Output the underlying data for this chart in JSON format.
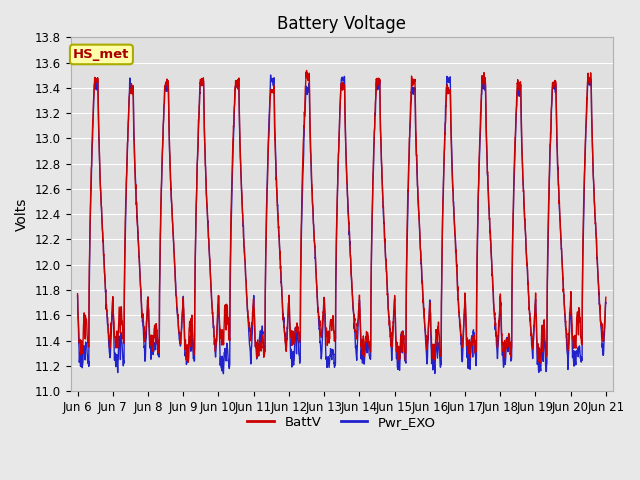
{
  "title": "Battery Voltage",
  "ylabel": "Volts",
  "ylim": [
    11.0,
    13.8
  ],
  "yticks": [
    11.0,
    11.2,
    11.4,
    11.6,
    11.8,
    12.0,
    12.2,
    12.4,
    12.6,
    12.8,
    13.0,
    13.2,
    13.4,
    13.6,
    13.8
  ],
  "x_labels": [
    "Jun 6",
    "Jun 7",
    "Jun 8",
    "Jun 9",
    "Jun 10",
    "Jun 11",
    "Jun 12",
    "Jun 13",
    "Jun 14",
    "Jun 15",
    "Jun 16",
    "Jun 17",
    "Jun 18",
    "Jun 19",
    "Jun 20",
    "Jun 21"
  ],
  "n_days": 15,
  "batt_color": "#cc0000",
  "pwr_color": "#2222cc",
  "legend_label_batt": "BattV",
  "legend_label_pwr": "Pwr_EXO",
  "annotation_text": "HS_met",
  "annotation_bg": "#ffffaa",
  "annotation_border": "#aaaa00",
  "annotation_text_color": "#aa0000",
  "fig_bg": "#e8e8e8",
  "plot_bg": "#e0e0e0",
  "title_fontsize": 12,
  "axis_fontsize": 10,
  "tick_fontsize": 8.5
}
